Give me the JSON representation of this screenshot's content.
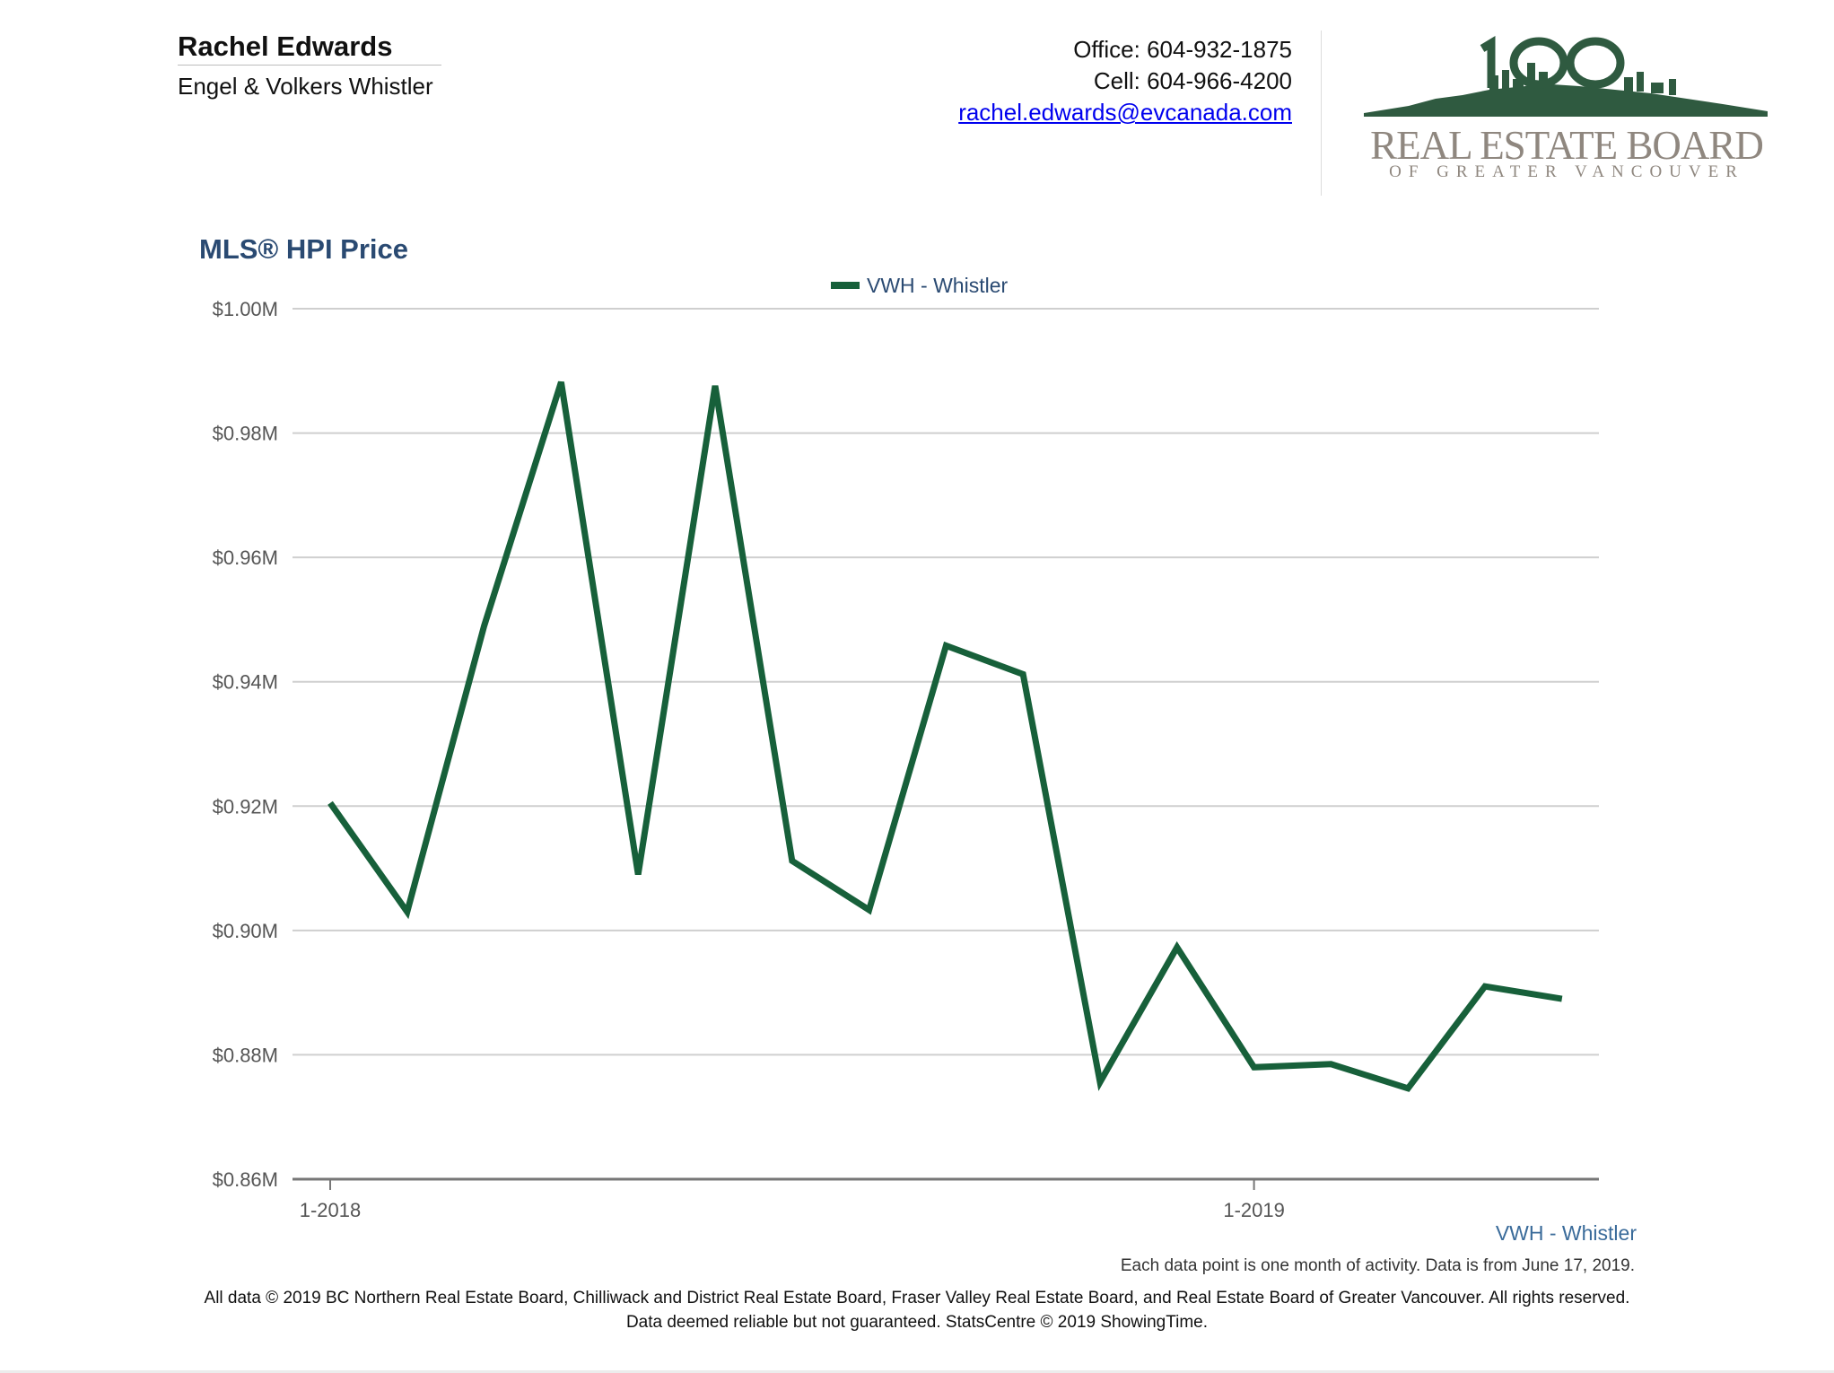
{
  "agent": {
    "name": "Rachel Edwards",
    "company": "Engel & Volkers Whistler"
  },
  "contact": {
    "office": "Office: 604-932-1875",
    "cell": "Cell: 604-966-4200",
    "email": "rachel.edwards@evcanada.com"
  },
  "logo": {
    "line1": "REAL ESTATE BOARD",
    "line2": "OF GREATER VANCOUVER",
    "emblem_text": "100"
  },
  "chart_data": {
    "type": "line",
    "title": "MLS® HPI Price",
    "legend": [
      "VWH - Whistler"
    ],
    "xlabel": "",
    "ylabel": "",
    "x": [
      "1-2018",
      "2-2018",
      "3-2018",
      "4-2018",
      "5-2018",
      "6-2018",
      "7-2018",
      "8-2018",
      "9-2018",
      "10-2018",
      "11-2018",
      "12-2018",
      "1-2019",
      "2-2019",
      "3-2019",
      "4-2019",
      "5-2019"
    ],
    "x_tick_labels": [
      {
        "label": "1-2018",
        "index": 0
      },
      {
        "label": "1-2019",
        "index": 12
      }
    ],
    "y_tick_labels": [
      "$0.86M",
      "$0.88M",
      "$0.90M",
      "$0.92M",
      "$0.94M",
      "$0.96M",
      "$0.98M",
      "$1.00M"
    ],
    "y_ticks": [
      0.86,
      0.88,
      0.9,
      0.92,
      0.94,
      0.96,
      0.98,
      1.0
    ],
    "ylim": [
      0.86,
      1.0
    ],
    "grid": true,
    "series": [
      {
        "name": "VWH - Whistler",
        "color": "#17603a",
        "values": [
          0.9205,
          0.903,
          0.949,
          0.9882,
          0.909,
          0.9876,
          0.9112,
          0.9033,
          0.9458,
          0.9412,
          0.8756,
          0.8973,
          0.878,
          0.8785,
          0.8746,
          0.891,
          0.889
        ]
      }
    ]
  },
  "series_label": "VWH - Whistler",
  "note": "Each data point is one month of activity. Data is from June 17, 2019.",
  "footer": {
    "line1": "All data © 2019 BC Northern Real Estate Board, Chilliwack and District Real Estate Board, Fraser Valley Real Estate Board, and Real Estate Board of Greater Vancouver. All rights reserved.",
    "line2": "Data deemed reliable but not guaranteed. StatsCentre © 2019 ShowingTime."
  }
}
